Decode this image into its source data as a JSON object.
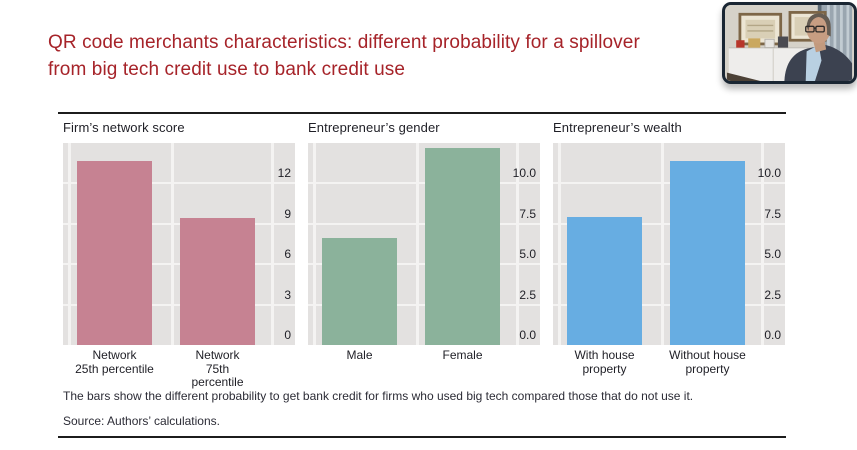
{
  "slide": {
    "title": "QR code merchants characteristics: different probability for a spillover from big tech credit use to bank credit use",
    "title_line1": "QR code merchants characteristics: different probability for a spillover",
    "title_line2": "from big tech credit use to bank credit use"
  },
  "figure": {
    "footnote": "The bars show the different probability to get bank credit for firms who used big tech compared those that do not use it.",
    "source": "Source: Authors’ calculations."
  },
  "chart_data": [
    {
      "type": "bar",
      "title": "Firm’s network score",
      "categories": [
        [
          "Network",
          "25th percentile"
        ],
        [
          "Network",
          "75th percentile"
        ]
      ],
      "values": [
        13.7,
        9.4
      ],
      "ylim": [
        0,
        15
      ],
      "yticks": [
        {
          "value": 0,
          "label": "0"
        },
        {
          "value": 3,
          "label": "3"
        },
        {
          "value": 6,
          "label": "6"
        },
        {
          "value": 9,
          "label": "9"
        },
        {
          "value": 12,
          "label": "12"
        }
      ],
      "bar_color": "#c68292",
      "panel_bg": "#e3e1e0",
      "grid": true,
      "tick_side": "right",
      "xlabel": "",
      "ylabel": ""
    },
    {
      "type": "bar",
      "title": "Entrepreneur’s gender",
      "categories": [
        [
          "Male"
        ],
        [
          "Female"
        ]
      ],
      "values": [
        6.6,
        12.2
      ],
      "ylim": [
        0,
        12.5
      ],
      "yticks": [
        {
          "value": 0,
          "label": "0.0"
        },
        {
          "value": 2.5,
          "label": "2.5"
        },
        {
          "value": 5,
          "label": "5.0"
        },
        {
          "value": 7.5,
          "label": "7.5"
        },
        {
          "value": 10,
          "label": "10.0"
        }
      ],
      "bar_color": "#8bb29b",
      "panel_bg": "#e3e1e0",
      "grid": true,
      "tick_side": "right",
      "xlabel": "",
      "ylabel": ""
    },
    {
      "type": "bar",
      "title": "Entrepreneur’s wealth",
      "categories": [
        [
          "With house",
          "property"
        ],
        [
          "Without house",
          "property"
        ]
      ],
      "values": [
        7.9,
        11.4
      ],
      "ylim": [
        0,
        12.5
      ],
      "yticks": [
        {
          "value": 0,
          "label": "0.0"
        },
        {
          "value": 2.5,
          "label": "2.5"
        },
        {
          "value": 5,
          "label": "5.0"
        },
        {
          "value": 7.5,
          "label": "7.5"
        },
        {
          "value": 10,
          "label": "10.0"
        }
      ],
      "bar_color": "#67ade2",
      "panel_bg": "#e3e1e0",
      "grid": true,
      "tick_side": "right",
      "xlabel": "",
      "ylabel": ""
    }
  ],
  "colors": {
    "title_red": "#a62329",
    "rule": "#1c1c1c",
    "text": "#1f1f26",
    "panel_bg": "#e3e1e0",
    "gridline": "#f4f3f2"
  }
}
